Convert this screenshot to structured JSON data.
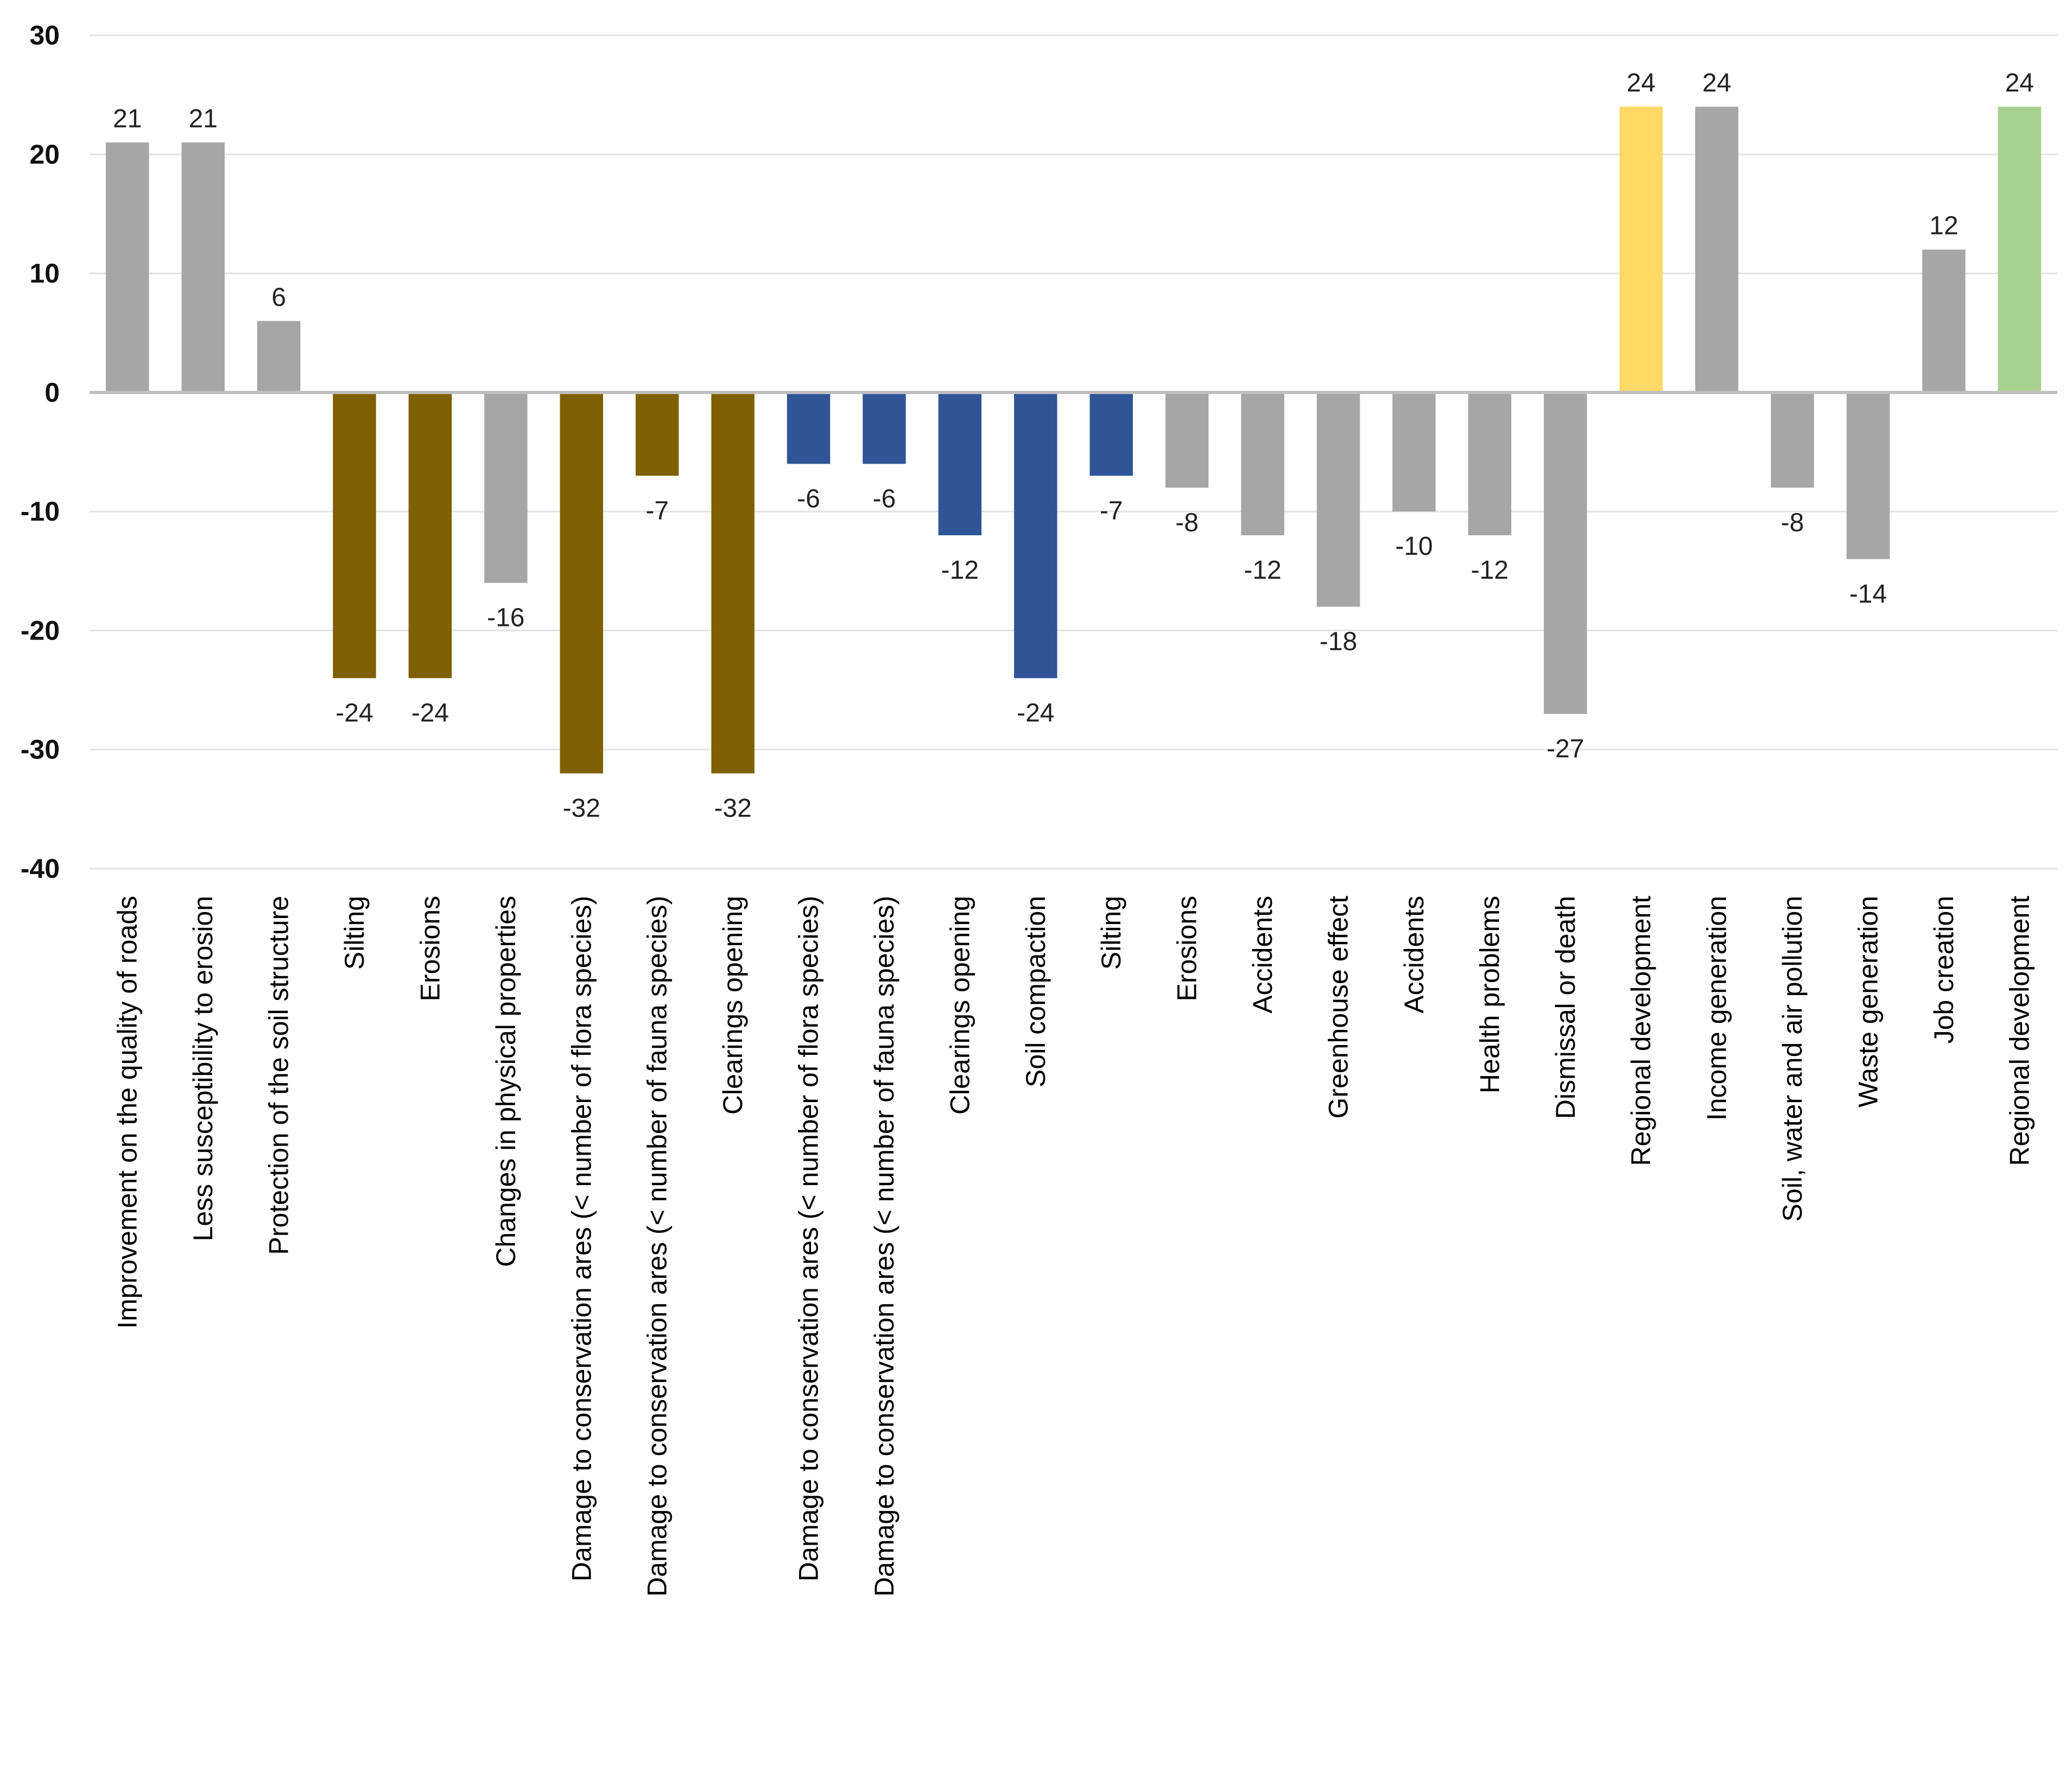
{
  "chart_data": {
    "type": "bar",
    "title": "",
    "xlabel": "",
    "ylabel": "",
    "ylim": [
      -40,
      30
    ],
    "yticks": [
      30,
      20,
      10,
      0,
      -10,
      -20,
      -30,
      -40
    ],
    "grid": true,
    "legend": "none",
    "categories": [
      "Improvement  on the quality of roads",
      "Less susceptibility  to erosion",
      "Protection  of the soil structure",
      "Silting",
      "Erosions",
      "Changes in physical properties",
      "Damage to conservation  ares (< number of flora species)",
      "Damage to conservation  ares (< number of fauna species)",
      "Clearings  opening",
      "Damage to conservation  ares (< number of flora  species)",
      "Damage to conservation  ares (< number of fauna  species)",
      "Clearings  opening",
      "Soil compaction",
      "Silting",
      "Erosions",
      "Accidents",
      "Greenhouse  effect",
      "Accidents",
      "Health  problems",
      "Dismissal  or death",
      "Regional  development",
      "Income  generation",
      "Soil, water and air pollution",
      "Waste  generation",
      "Job creation",
      "Regional  development"
    ],
    "values": [
      21,
      21,
      6,
      -24,
      -24,
      -16,
      -32,
      -7,
      -32,
      -6,
      -6,
      -12,
      -24,
      -7,
      -8,
      -12,
      -18,
      -10,
      -12,
      -27,
      24,
      24,
      -8,
      -14,
      12,
      24
    ],
    "value_labels": [
      "21",
      "21",
      "6",
      "-24",
      "-24",
      "-16",
      "-32",
      "-7",
      "-32",
      "-6",
      "-6",
      "-12",
      "-24",
      "-7",
      "-8",
      "-12",
      "-18",
      "-10",
      "-12",
      "-27",
      "24",
      "24",
      "-8",
      "-14",
      "12",
      "24"
    ],
    "bar_colors": [
      "#a6a6a6",
      "#a6a6a6",
      "#a6a6a6",
      "#7f6000",
      "#7f6000",
      "#a6a6a6",
      "#7f6000",
      "#7f6000",
      "#7f6000",
      "#2f5597",
      "#2f5597",
      "#2f5597",
      "#2f5597",
      "#2f5597",
      "#a6a6a6",
      "#a6a6a6",
      "#a6a6a6",
      "#a6a6a6",
      "#a6a6a6",
      "#a6a6a6",
      "#ffd966",
      "#a6a6a6",
      "#a6a6a6",
      "#a6a6a6",
      "#a6a6a6",
      "#a9d18e"
    ]
  },
  "colors": {
    "gray": "#a6a6a6",
    "brown": "#7f6000",
    "blue": "#2f5597",
    "yellow": "#ffd966",
    "green": "#a9d18e",
    "gridline": "#e3e3e3",
    "axis": "#bfbfbf"
  }
}
